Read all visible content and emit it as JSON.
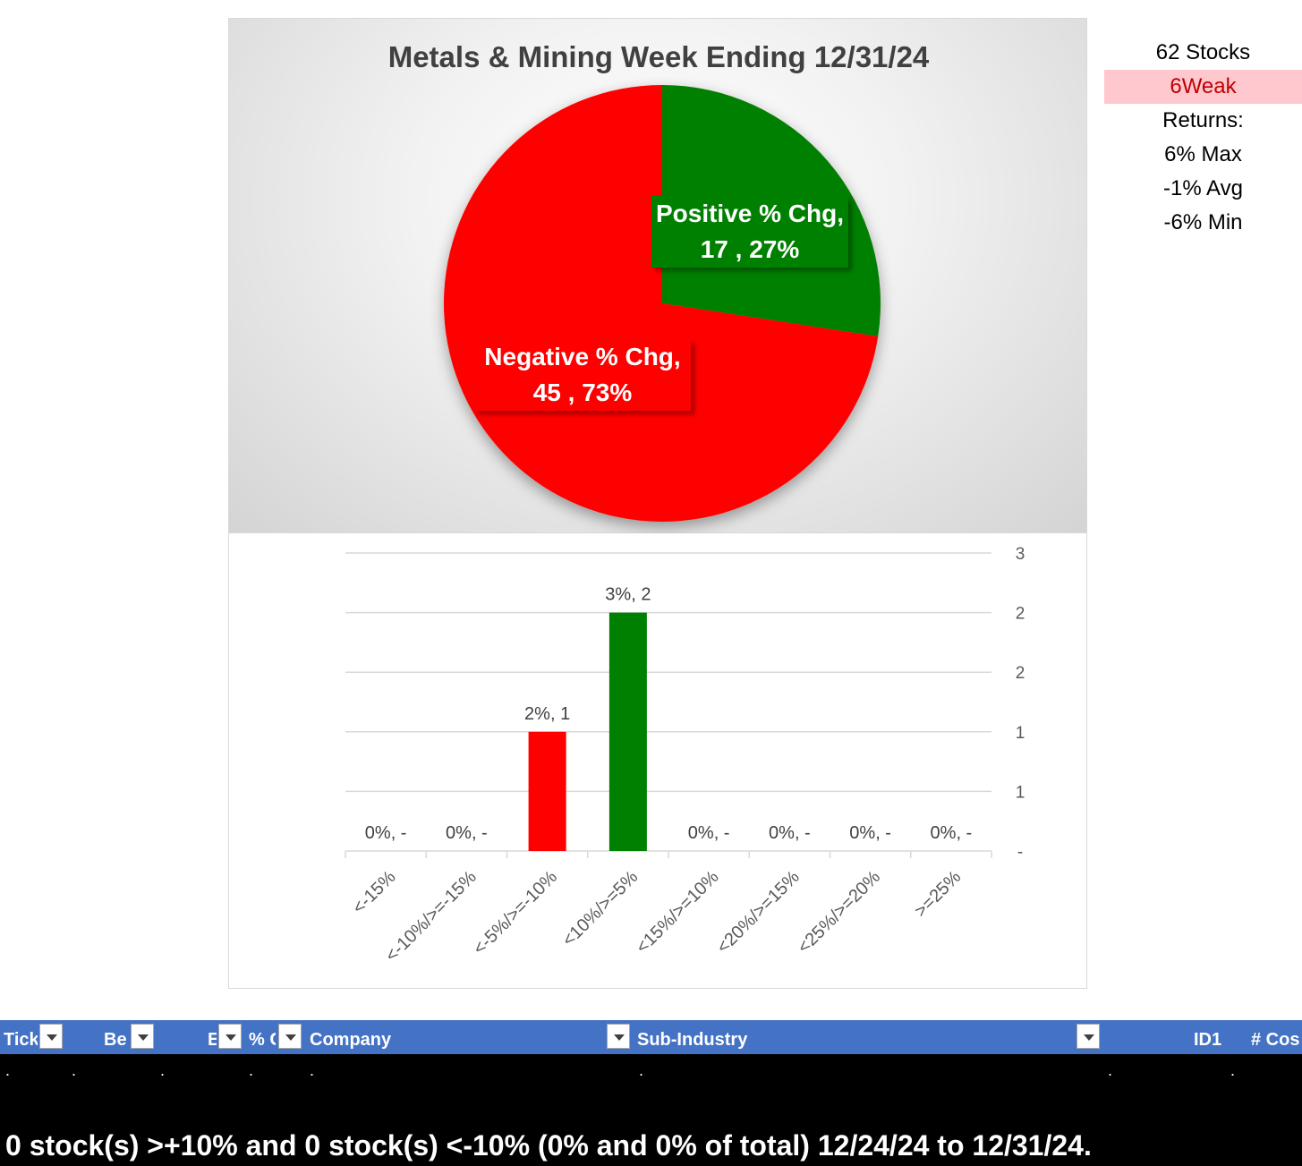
{
  "chart_data": [
    {
      "type": "pie",
      "title": "Metals & Mining Week Ending 12/31/24",
      "slices": [
        {
          "name": "Positive % Chg",
          "count": 17,
          "percent_label": "27%",
          "color": "#008000"
        },
        {
          "name": "Negative % Chg",
          "count": 45,
          "percent_label": "73%",
          "color": "#ff0000"
        }
      ],
      "labels": [
        {
          "line1": "Positive % Chg,",
          "line2": "17 , 27%"
        },
        {
          "line1": "Negative % Chg,",
          "line2": "45 , 73%"
        }
      ]
    },
    {
      "type": "bar",
      "categories": [
        "<-15%",
        "<-10%/>=-15%",
        "<-5%/>=-10%",
        "<10%/>=5%",
        "<15%/>=10%",
        "<20%/>=15%",
        "<25%/>=20%",
        ">=25%"
      ],
      "values": [
        0,
        0,
        1,
        2,
        0,
        0,
        0,
        0
      ],
      "data_labels": [
        "0%,  -",
        "0%,  -",
        "2%,  1",
        "3%,  2",
        "0%,  -",
        "0%,  -",
        "0%,  -",
        "0%,  -"
      ],
      "colors": [
        "#ff0000",
        "#ff0000",
        "#ff0000",
        "#008000",
        "#008000",
        "#008000",
        "#008000",
        "#008000"
      ],
      "y_axis_position": "right",
      "y_tick_labels": [
        "-",
        "1",
        "1",
        "2",
        "2",
        "3"
      ],
      "ylim": [
        0,
        2.5
      ],
      "grid": true
    }
  ],
  "stats": {
    "stock_count": "62 Stocks",
    "strength": "6Weak",
    "returns_label": "Returns:",
    "max": "6% Max",
    "avg": "-1% Avg",
    "min": "-6% Min"
  },
  "table": {
    "headers": [
      "Tick",
      "Be",
      "E",
      "% C",
      "Company",
      "Sub-Industry",
      "ID1",
      "# Cos"
    ],
    "row_dots": [
      ".",
      ".",
      ".",
      ".",
      ".",
      ".",
      ".",
      "."
    ]
  },
  "summary": "0 stock(s) >+10% and 0 stock(s) <-10% (0% and 0% of total) 12/24/24 to 12/31/24."
}
